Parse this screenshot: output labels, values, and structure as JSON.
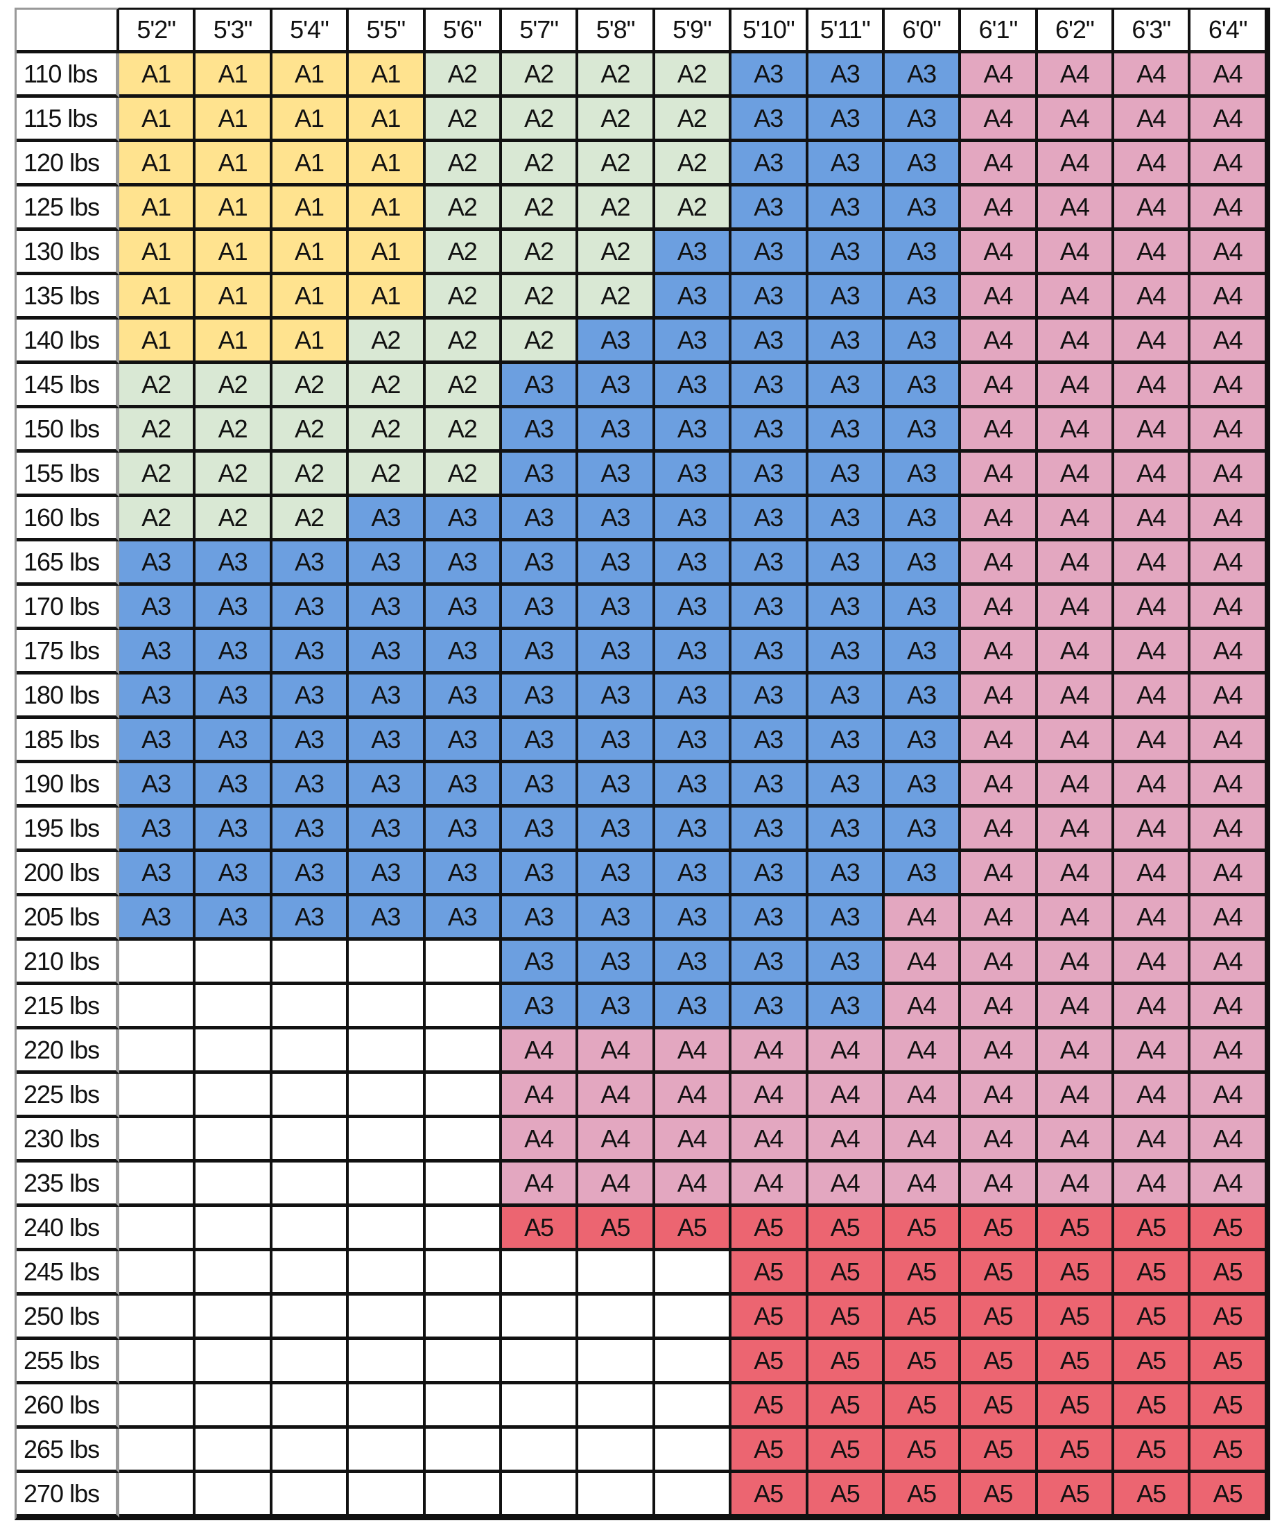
{
  "chart_data": {
    "type": "table",
    "columns": [
      "5'2\"",
      "5'3\"",
      "5'4\"",
      "5'5\"",
      "5'6\"",
      "5'7\"",
      "5'8\"",
      "5'9\"",
      "5'10\"",
      "5'11\"",
      "6'0\"",
      "6'1\"",
      "6'2\"",
      "6'3\"",
      "6'4\""
    ],
    "rows": [
      {
        "label": "110 lbs",
        "cells": [
          "A1",
          "A1",
          "A1",
          "A1",
          "A2",
          "A2",
          "A2",
          "A2",
          "A3",
          "A3",
          "A3",
          "A4",
          "A4",
          "A4",
          "A4"
        ]
      },
      {
        "label": "115 lbs",
        "cells": [
          "A1",
          "A1",
          "A1",
          "A1",
          "A2",
          "A2",
          "A2",
          "A2",
          "A3",
          "A3",
          "A3",
          "A4",
          "A4",
          "A4",
          "A4"
        ]
      },
      {
        "label": "120 lbs",
        "cells": [
          "A1",
          "A1",
          "A1",
          "A1",
          "A2",
          "A2",
          "A2",
          "A2",
          "A3",
          "A3",
          "A3",
          "A4",
          "A4",
          "A4",
          "A4"
        ]
      },
      {
        "label": "125 lbs",
        "cells": [
          "A1",
          "A1",
          "A1",
          "A1",
          "A2",
          "A2",
          "A2",
          "A2",
          "A3",
          "A3",
          "A3",
          "A4",
          "A4",
          "A4",
          "A4"
        ]
      },
      {
        "label": "130 lbs",
        "cells": [
          "A1",
          "A1",
          "A1",
          "A1",
          "A2",
          "A2",
          "A2",
          "A3",
          "A3",
          "A3",
          "A3",
          "A4",
          "A4",
          "A4",
          "A4"
        ]
      },
      {
        "label": "135 lbs",
        "cells": [
          "A1",
          "A1",
          "A1",
          "A1",
          "A2",
          "A2",
          "A2",
          "A3",
          "A3",
          "A3",
          "A3",
          "A4",
          "A4",
          "A4",
          "A4"
        ]
      },
      {
        "label": "140 lbs",
        "cells": [
          "A1",
          "A1",
          "A1",
          "A2",
          "A2",
          "A2",
          "A3",
          "A3",
          "A3",
          "A3",
          "A3",
          "A4",
          "A4",
          "A4",
          "A4"
        ]
      },
      {
        "label": "145 lbs",
        "cells": [
          "A2",
          "A2",
          "A2",
          "A2",
          "A2",
          "A3",
          "A3",
          "A3",
          "A3",
          "A3",
          "A3",
          "A4",
          "A4",
          "A4",
          "A4"
        ]
      },
      {
        "label": "150 lbs",
        "cells": [
          "A2",
          "A2",
          "A2",
          "A2",
          "A2",
          "A3",
          "A3",
          "A3",
          "A3",
          "A3",
          "A3",
          "A4",
          "A4",
          "A4",
          "A4"
        ]
      },
      {
        "label": "155 lbs",
        "cells": [
          "A2",
          "A2",
          "A2",
          "A2",
          "A2",
          "A3",
          "A3",
          "A3",
          "A3",
          "A3",
          "A3",
          "A4",
          "A4",
          "A4",
          "A4"
        ]
      },
      {
        "label": "160 lbs",
        "cells": [
          "A2",
          "A2",
          "A2",
          "A3",
          "A3",
          "A3",
          "A3",
          "A3",
          "A3",
          "A3",
          "A3",
          "A4",
          "A4",
          "A4",
          "A4"
        ]
      },
      {
        "label": "165 lbs",
        "cells": [
          "A3",
          "A3",
          "A3",
          "A3",
          "A3",
          "A3",
          "A3",
          "A3",
          "A3",
          "A3",
          "A3",
          "A4",
          "A4",
          "A4",
          "A4"
        ]
      },
      {
        "label": "170 lbs",
        "cells": [
          "A3",
          "A3",
          "A3",
          "A3",
          "A3",
          "A3",
          "A3",
          "A3",
          "A3",
          "A3",
          "A3",
          "A4",
          "A4",
          "A4",
          "A4"
        ]
      },
      {
        "label": "175 lbs",
        "cells": [
          "A3",
          "A3",
          "A3",
          "A3",
          "A3",
          "A3",
          "A3",
          "A3",
          "A3",
          "A3",
          "A3",
          "A4",
          "A4",
          "A4",
          "A4"
        ]
      },
      {
        "label": "180 lbs",
        "cells": [
          "A3",
          "A3",
          "A3",
          "A3",
          "A3",
          "A3",
          "A3",
          "A3",
          "A3",
          "A3",
          "A3",
          "A4",
          "A4",
          "A4",
          "A4"
        ]
      },
      {
        "label": "185 lbs",
        "cells": [
          "A3",
          "A3",
          "A3",
          "A3",
          "A3",
          "A3",
          "A3",
          "A3",
          "A3",
          "A3",
          "A3",
          "A4",
          "A4",
          "A4",
          "A4"
        ]
      },
      {
        "label": "190 lbs",
        "cells": [
          "A3",
          "A3",
          "A3",
          "A3",
          "A3",
          "A3",
          "A3",
          "A3",
          "A3",
          "A3",
          "A3",
          "A4",
          "A4",
          "A4",
          "A4"
        ]
      },
      {
        "label": "195 lbs",
        "cells": [
          "A3",
          "A3",
          "A3",
          "A3",
          "A3",
          "A3",
          "A3",
          "A3",
          "A3",
          "A3",
          "A3",
          "A4",
          "A4",
          "A4",
          "A4"
        ]
      },
      {
        "label": "200 lbs",
        "cells": [
          "A3",
          "A3",
          "A3",
          "A3",
          "A3",
          "A3",
          "A3",
          "A3",
          "A3",
          "A3",
          "A3",
          "A4",
          "A4",
          "A4",
          "A4"
        ]
      },
      {
        "label": "205 lbs",
        "cells": [
          "A3",
          "A3",
          "A3",
          "A3",
          "A3",
          "A3",
          "A3",
          "A3",
          "A3",
          "A3",
          "A4",
          "A4",
          "A4",
          "A4",
          "A4"
        ]
      },
      {
        "label": "210 lbs",
        "cells": [
          "",
          "",
          "",
          "",
          "",
          "A3",
          "A3",
          "A3",
          "A3",
          "A3",
          "A4",
          "A4",
          "A4",
          "A4",
          "A4"
        ]
      },
      {
        "label": "215 lbs",
        "cells": [
          "",
          "",
          "",
          "",
          "",
          "A3",
          "A3",
          "A3",
          "A3",
          "A3",
          "A4",
          "A4",
          "A4",
          "A4",
          "A4"
        ]
      },
      {
        "label": "220 lbs",
        "cells": [
          "",
          "",
          "",
          "",
          "",
          "A4",
          "A4",
          "A4",
          "A4",
          "A4",
          "A4",
          "A4",
          "A4",
          "A4",
          "A4"
        ]
      },
      {
        "label": "225 lbs",
        "cells": [
          "",
          "",
          "",
          "",
          "",
          "A4",
          "A4",
          "A4",
          "A4",
          "A4",
          "A4",
          "A4",
          "A4",
          "A4",
          "A4"
        ]
      },
      {
        "label": "230 lbs",
        "cells": [
          "",
          "",
          "",
          "",
          "",
          "A4",
          "A4",
          "A4",
          "A4",
          "A4",
          "A4",
          "A4",
          "A4",
          "A4",
          "A4"
        ]
      },
      {
        "label": "235 lbs",
        "cells": [
          "",
          "",
          "",
          "",
          "",
          "A4",
          "A4",
          "A4",
          "A4",
          "A4",
          "A4",
          "A4",
          "A4",
          "A4",
          "A4"
        ]
      },
      {
        "label": "240 lbs",
        "cells": [
          "",
          "",
          "",
          "",
          "",
          "A5",
          "A5",
          "A5",
          "A5",
          "A5",
          "A5",
          "A5",
          "A5",
          "A5",
          "A5"
        ]
      },
      {
        "label": "245 lbs",
        "cells": [
          "",
          "",
          "",
          "",
          "",
          "",
          "",
          "",
          "A5",
          "A5",
          "A5",
          "A5",
          "A5",
          "A5",
          "A5"
        ]
      },
      {
        "label": "250 lbs",
        "cells": [
          "",
          "",
          "",
          "",
          "",
          "",
          "",
          "",
          "A5",
          "A5",
          "A5",
          "A5",
          "A5",
          "A5",
          "A5"
        ]
      },
      {
        "label": "255 lbs",
        "cells": [
          "",
          "",
          "",
          "",
          "",
          "",
          "",
          "",
          "A5",
          "A5",
          "A5",
          "A5",
          "A5",
          "A5",
          "A5"
        ]
      },
      {
        "label": "260 lbs",
        "cells": [
          "",
          "",
          "",
          "",
          "",
          "",
          "",
          "",
          "A5",
          "A5",
          "A5",
          "A5",
          "A5",
          "A5",
          "A5"
        ]
      },
      {
        "label": "265 lbs",
        "cells": [
          "",
          "",
          "",
          "",
          "",
          "",
          "",
          "",
          "A5",
          "A5",
          "A5",
          "A5",
          "A5",
          "A5",
          "A5"
        ]
      },
      {
        "label": "270 lbs",
        "cells": [
          "",
          "",
          "",
          "",
          "",
          "",
          "",
          "",
          "A5",
          "A5",
          "A5",
          "A5",
          "A5",
          "A5",
          "A5"
        ]
      }
    ],
    "colors": {
      "A1": "#FFE38F",
      "A2": "#D9E8D4",
      "A3": "#6C9FE0",
      "A4": "#E3A7C0",
      "A5": "#EC6571",
      "": "#FFFFFF"
    }
  }
}
